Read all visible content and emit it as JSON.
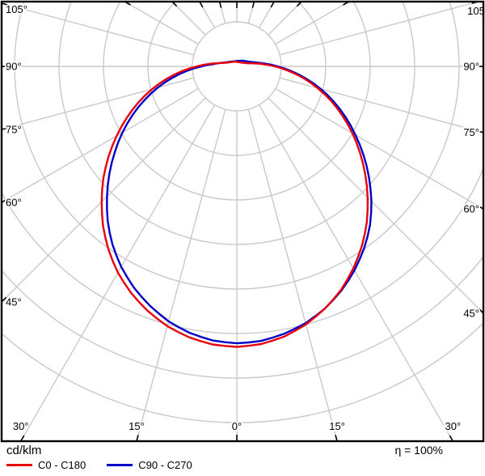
{
  "chart_data": {
    "type": "line",
    "subtype": "polar-photometric-distribution",
    "units_label": "cd/klm",
    "efficiency_label": "η = 100%",
    "grid": {
      "ring_count": 8,
      "angle_step_deg": 15,
      "color": "#c9c9c9",
      "ring_unit_note": "radii in grid-ring units; no radial value labels shown"
    },
    "angle_ticks": [
      {
        "gamma": 0,
        "label": "0°"
      },
      {
        "gamma": 15,
        "label": "15°"
      },
      {
        "gamma": 30,
        "label": "30°"
      },
      {
        "gamma": 45,
        "label": "45°"
      },
      {
        "gamma": 60,
        "label": "60°"
      },
      {
        "gamma": 75,
        "label": "75°"
      },
      {
        "gamma": 90,
        "label": "90°"
      },
      {
        "gamma": 105,
        "label": "105°"
      }
    ],
    "gamma_deg": [
      0,
      5,
      10,
      15,
      20,
      25,
      30,
      35,
      40,
      45,
      50,
      55,
      60,
      65,
      70,
      75,
      80,
      85,
      90,
      95,
      100,
      105,
      110,
      120,
      135,
      150,
      165,
      180
    ],
    "series": [
      {
        "name": "C0 - C180",
        "color": "#e8000d",
        "r_left": [
          6.3,
          6.27,
          6.18,
          6.04,
          5.85,
          5.62,
          5.35,
          5.03,
          4.68,
          4.3,
          3.92,
          3.52,
          3.12,
          2.73,
          2.35,
          1.97,
          1.6,
          1.24,
          0.9,
          0.62,
          0.42,
          0.3,
          0.24,
          0.18,
          0.14,
          0.12,
          0.11,
          0.1
        ],
        "r_right": [
          6.3,
          6.26,
          6.16,
          6.0,
          5.79,
          5.54,
          5.24,
          4.91,
          4.55,
          4.16,
          3.77,
          3.38,
          3.0,
          2.62,
          2.25,
          1.88,
          1.52,
          1.17,
          0.85,
          0.58,
          0.39,
          0.27,
          0.21,
          0.16,
          0.12,
          0.11,
          0.1,
          0.1
        ]
      },
      {
        "name": "C90 - C270",
        "color": "#0000c8",
        "r_left": [
          6.22,
          6.18,
          6.08,
          5.93,
          5.72,
          5.48,
          5.2,
          4.88,
          4.52,
          4.13,
          3.74,
          3.35,
          2.97,
          2.59,
          2.21,
          1.84,
          1.47,
          1.12,
          0.79,
          0.55,
          0.41,
          0.32,
          0.26,
          0.2,
          0.15,
          0.13,
          0.12,
          0.12
        ],
        "r_right": [
          6.22,
          6.19,
          6.1,
          5.97,
          5.79,
          5.56,
          5.29,
          4.99,
          4.66,
          4.28,
          3.88,
          3.48,
          3.08,
          2.7,
          2.32,
          1.95,
          1.58,
          1.23,
          0.92,
          0.66,
          0.48,
          0.37,
          0.3,
          0.23,
          0.18,
          0.14,
          0.13,
          0.12
        ]
      }
    ]
  }
}
